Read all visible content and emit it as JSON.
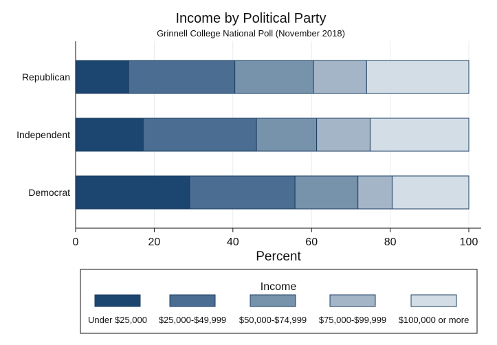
{
  "chart_data": {
    "type": "bar",
    "orientation": "horizontal",
    "stacked": true,
    "title": "Income by Political Party",
    "subtitle": "Grinnell College National Poll (November 2018)",
    "xlabel": "Percent",
    "ylabel": "",
    "xlim": [
      0,
      100
    ],
    "xticks": [
      0,
      20,
      40,
      60,
      80,
      100
    ],
    "grid": true,
    "categories": [
      "Republican",
      "Independent",
      "Democrat"
    ],
    "series": [
      {
        "name": "Under $25,000",
        "color": "#1c4570",
        "values": [
          13.5,
          17.2,
          29.0
        ]
      },
      {
        "name": "$25,000-$49,999",
        "color": "#4a6d91",
        "values": [
          27.0,
          28.8,
          26.8
        ]
      },
      {
        "name": "$50,000-$74,999",
        "color": "#7792ab",
        "values": [
          20.0,
          15.3,
          16.0
        ]
      },
      {
        "name": "$75,000-$99,999",
        "color": "#a4b5c7",
        "values": [
          13.5,
          13.6,
          8.7
        ]
      },
      {
        "name": "$100,000 or more",
        "color": "#d2dde6",
        "values": [
          26.0,
          25.1,
          19.5
        ]
      }
    ],
    "legend": {
      "title": "Income",
      "position": "bottom"
    }
  }
}
